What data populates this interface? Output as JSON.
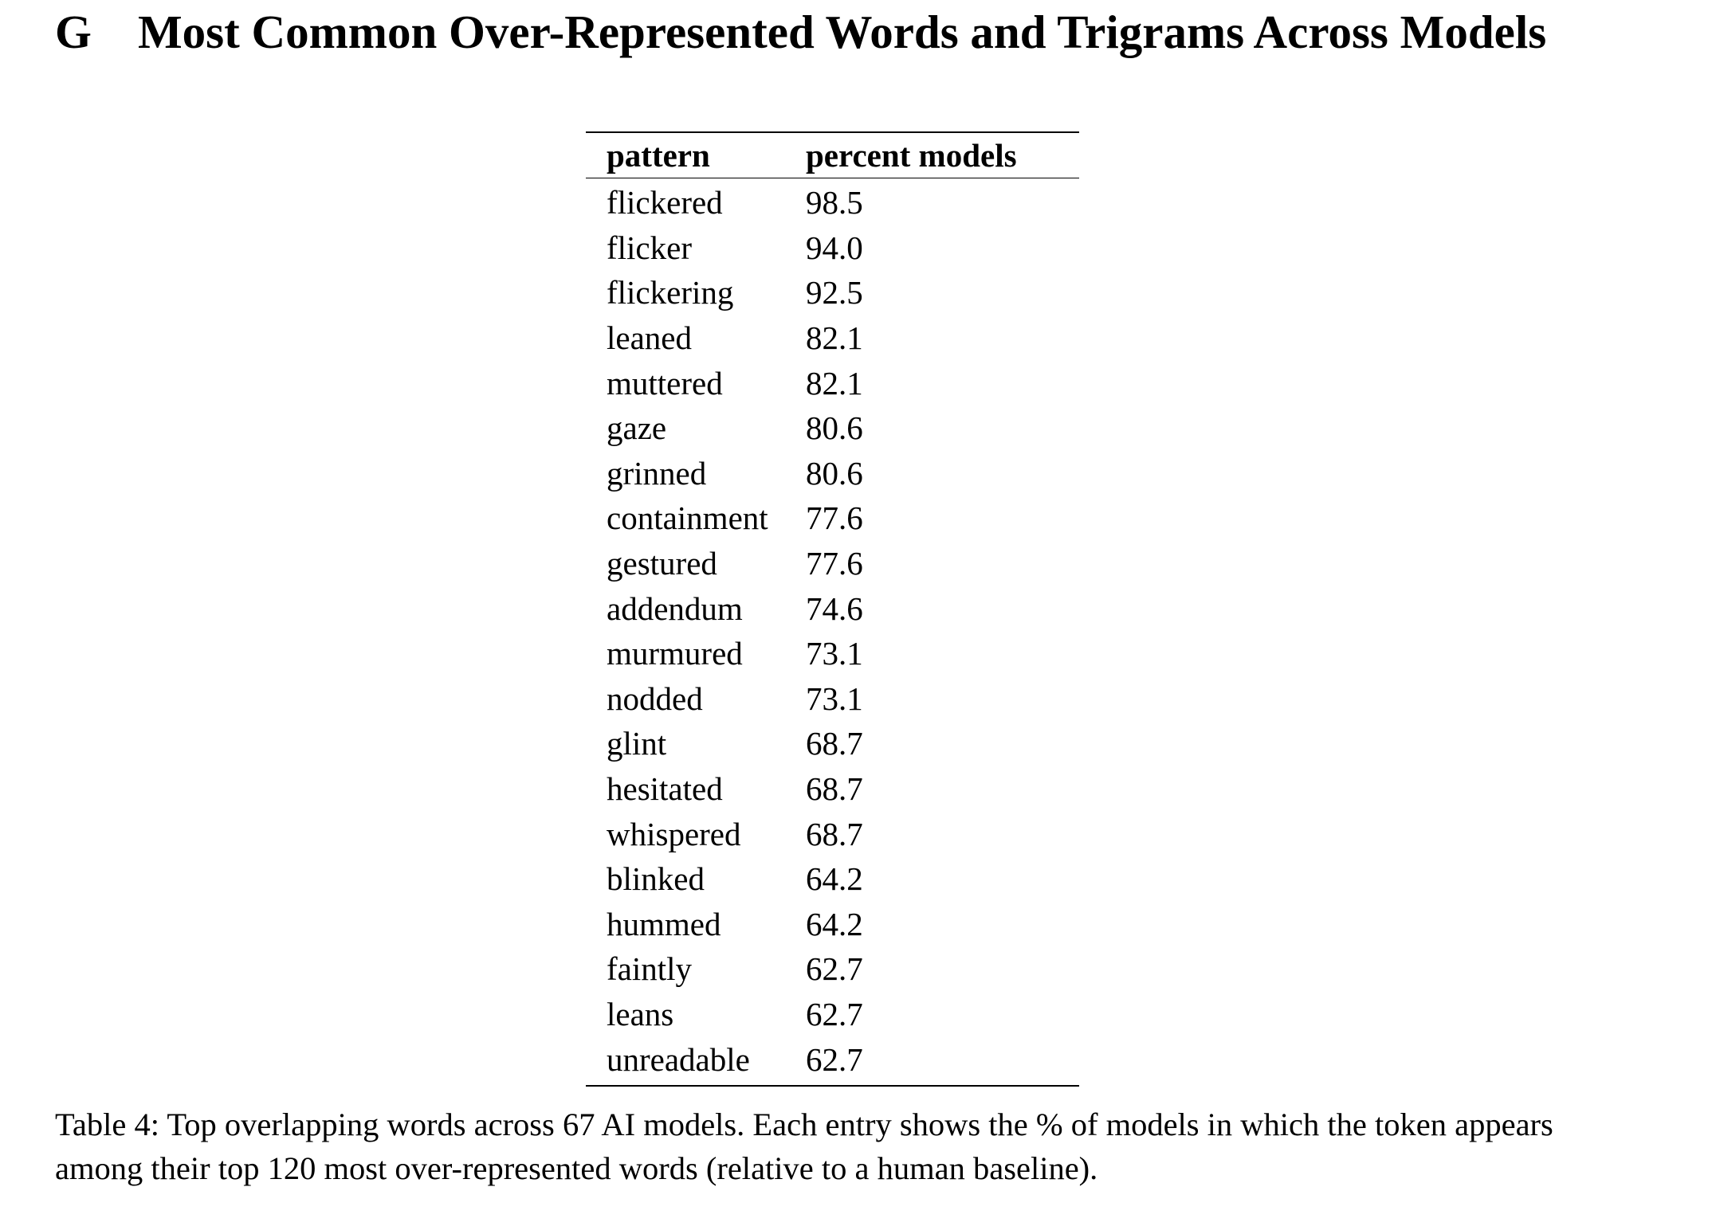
{
  "section": {
    "number": "G",
    "title": "Most Common Over-Represented Words and Trigrams Across Models"
  },
  "table": {
    "headers": [
      "pattern",
      "percent models"
    ],
    "rows": [
      [
        "flickered",
        "98.5"
      ],
      [
        "flicker",
        "94.0"
      ],
      [
        "flickering",
        "92.5"
      ],
      [
        "leaned",
        "82.1"
      ],
      [
        "muttered",
        "82.1"
      ],
      [
        "gaze",
        "80.6"
      ],
      [
        "grinned",
        "80.6"
      ],
      [
        "containment",
        "77.6"
      ],
      [
        "gestured",
        "77.6"
      ],
      [
        "addendum",
        "74.6"
      ],
      [
        "murmured",
        "73.1"
      ],
      [
        "nodded",
        "73.1"
      ],
      [
        "glint",
        "68.7"
      ],
      [
        "hesitated",
        "68.7"
      ],
      [
        "whispered",
        "68.7"
      ],
      [
        "blinked",
        "64.2"
      ],
      [
        "hummed",
        "64.2"
      ],
      [
        "faintly",
        "62.7"
      ],
      [
        "leans",
        "62.7"
      ],
      [
        "unreadable",
        "62.7"
      ]
    ]
  },
  "caption": "Table 4: Top overlapping words across 67 AI models. Each entry shows the % of models in which the token appears among their top 120 most over-represented words (relative to a human baseline)."
}
